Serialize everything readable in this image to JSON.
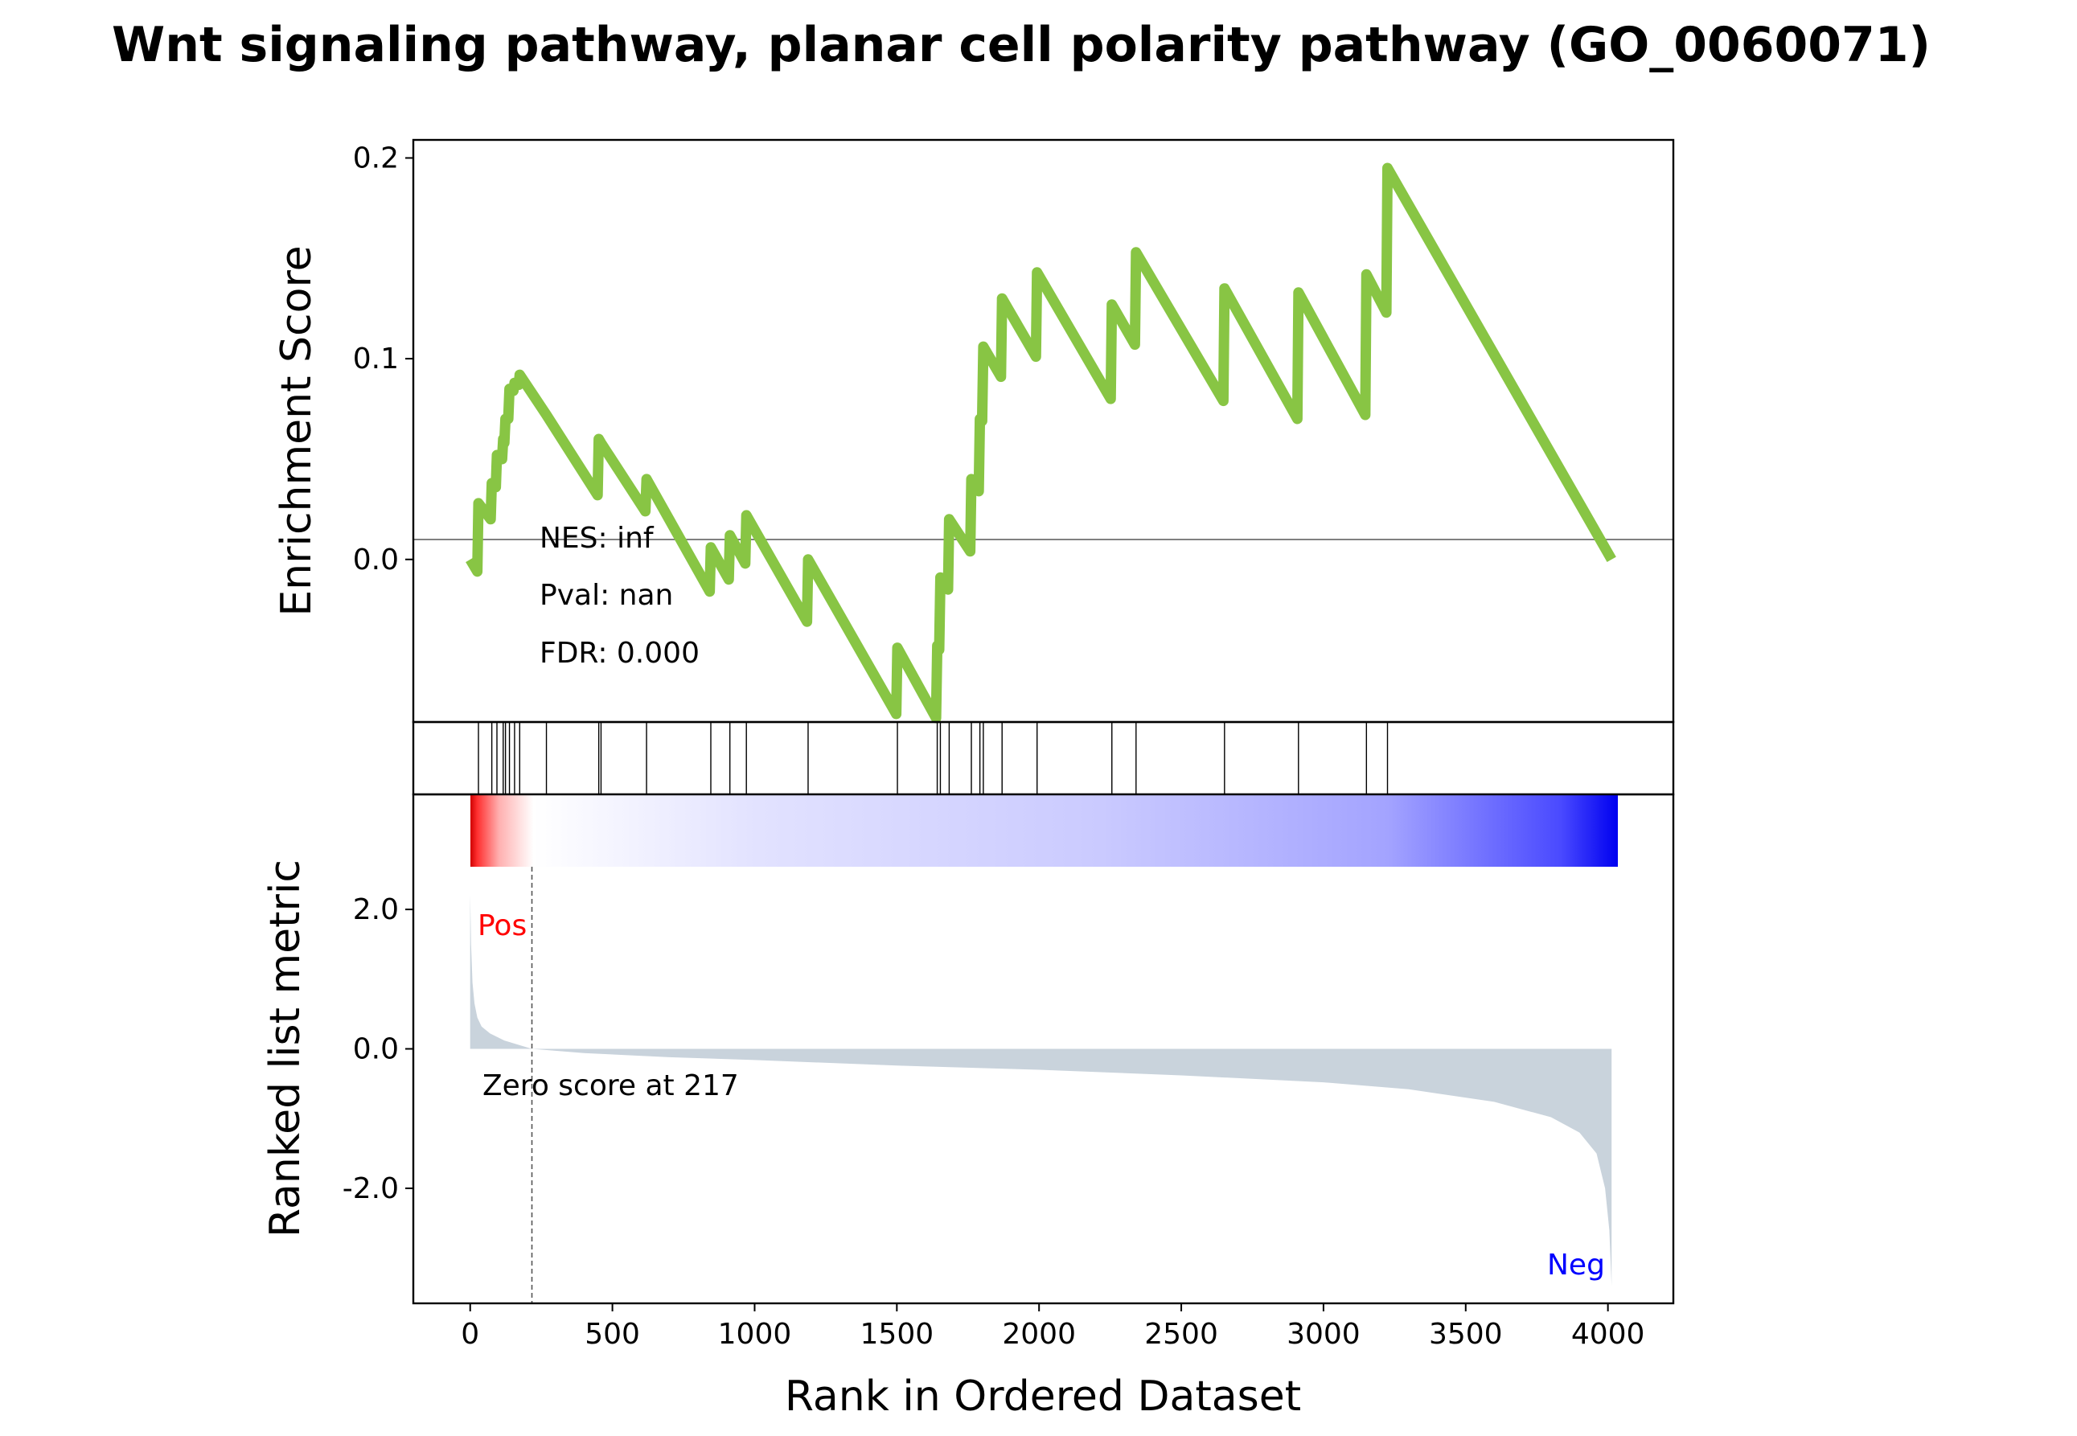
{
  "chart_data": {
    "type": "line",
    "title": "Wnt signaling pathway, planar cell polarity pathway (GO_0060071)",
    "xlabel": "Rank in Ordered Dataset",
    "xlim": [
      -200,
      4230
    ],
    "xticks": [
      0,
      500,
      1000,
      1500,
      2000,
      2500,
      3000,
      3500,
      4000
    ],
    "xtick_labels": [
      "0",
      "500",
      "1000",
      "1500",
      "2000",
      "2500",
      "3000",
      "3500",
      "4000"
    ],
    "colors": {
      "es_line": "#88c544",
      "metric_fill": "#c9d3dc",
      "pos": "#ff0000",
      "neg": "#0000ff",
      "hit": "#000000"
    },
    "enrichment": {
      "ylabel": "Enrichment Score",
      "ylim": [
        -0.081,
        0.209
      ],
      "yticks": [
        0.0,
        0.1,
        0.2
      ],
      "ytick_labels": [
        "0.0",
        "0.1",
        "0.2"
      ],
      "points": [
        [
          0,
          0.0
        ],
        [
          25,
          -0.006
        ],
        [
          29,
          0.028
        ],
        [
          72,
          0.02
        ],
        [
          76,
          0.038
        ],
        [
          90,
          0.036
        ],
        [
          94,
          0.052
        ],
        [
          112,
          0.05
        ],
        [
          116,
          0.06
        ],
        [
          120,
          0.058
        ],
        [
          124,
          0.07
        ],
        [
          134,
          0.07
        ],
        [
          138,
          0.085
        ],
        [
          152,
          0.084
        ],
        [
          156,
          0.088
        ],
        [
          171,
          0.087
        ],
        [
          174,
          0.092
        ],
        [
          268,
          0.072
        ],
        [
          448,
          0.032
        ],
        [
          452,
          0.06
        ],
        [
          460,
          0.058
        ],
        [
          616,
          0.024
        ],
        [
          620,
          0.04
        ],
        [
          842,
          -0.016
        ],
        [
          846,
          0.006
        ],
        [
          909,
          -0.01
        ],
        [
          913,
          0.012
        ],
        [
          967,
          -0.002
        ],
        [
          971,
          0.022
        ],
        [
          1184,
          -0.031
        ],
        [
          1188,
          0.0
        ],
        [
          1498,
          -0.077
        ],
        [
          1502,
          -0.044
        ],
        [
          1638,
          -0.079
        ],
        [
          1642,
          -0.043
        ],
        [
          1649,
          -0.045
        ],
        [
          1653,
          -0.009
        ],
        [
          1680,
          -0.015
        ],
        [
          1684,
          0.02
        ],
        [
          1758,
          0.004
        ],
        [
          1762,
          0.04
        ],
        [
          1788,
          0.034
        ],
        [
          1792,
          0.07
        ],
        [
          1800,
          0.069
        ],
        [
          1804,
          0.106
        ],
        [
          1866,
          0.091
        ],
        [
          1870,
          0.13
        ],
        [
          1989,
          0.101
        ],
        [
          1993,
          0.143
        ],
        [
          2252,
          0.08
        ],
        [
          2256,
          0.127
        ],
        [
          2337,
          0.107
        ],
        [
          2341,
          0.153
        ],
        [
          2648,
          0.079
        ],
        [
          2652,
          0.135
        ],
        [
          2908,
          0.07
        ],
        [
          2912,
          0.133
        ],
        [
          3147,
          0.072
        ],
        [
          3151,
          0.142
        ],
        [
          3221,
          0.123
        ],
        [
          3225,
          0.195
        ],
        [
          4013,
          0.0
        ]
      ],
      "annotations": [
        "NES: inf",
        "Pval: nan",
        "FDR: 0.000"
      ]
    },
    "hits": [
      29,
      76,
      94,
      116,
      124,
      138,
      156,
      174,
      268,
      452,
      460,
      620,
      846,
      913,
      971,
      1188,
      1502,
      1642,
      1653,
      1684,
      1762,
      1792,
      1804,
      1870,
      1993,
      2256,
      2341,
      2652,
      2912,
      3151,
      3225
    ],
    "ranked_metric": {
      "ylabel": "Ranked list metric",
      "ylim": [
        -3.65,
        3.65
      ],
      "yticks": [
        2.0,
        0.0,
        -2.0
      ],
      "ytick_labels": [
        "2.0",
        "0.0",
        "-2.0"
      ],
      "n": 4013,
      "points": [
        [
          0,
          2.22
        ],
        [
          3,
          1.5
        ],
        [
          8,
          0.95
        ],
        [
          15,
          0.65
        ],
        [
          25,
          0.45
        ],
        [
          40,
          0.32
        ],
        [
          70,
          0.22
        ],
        [
          120,
          0.12
        ],
        [
          217,
          0.0
        ],
        [
          400,
          -0.06
        ],
        [
          700,
          -0.12
        ],
        [
          1000,
          -0.16
        ],
        [
          1500,
          -0.24
        ],
        [
          2000,
          -0.3
        ],
        [
          2500,
          -0.38
        ],
        [
          3000,
          -0.48
        ],
        [
          3300,
          -0.58
        ],
        [
          3600,
          -0.76
        ],
        [
          3800,
          -0.98
        ],
        [
          3900,
          -1.2
        ],
        [
          3960,
          -1.5
        ],
        [
          3990,
          -2.0
        ],
        [
          4005,
          -2.6
        ],
        [
          4013,
          -3.4
        ]
      ],
      "zero_cross": 217,
      "zero_label": "Zero score at 217",
      "pos_label": "Pos",
      "neg_label": "Neg"
    }
  }
}
